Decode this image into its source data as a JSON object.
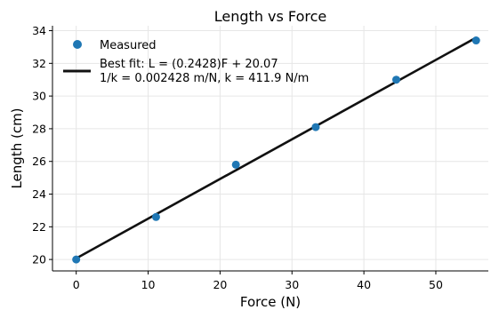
{
  "chart_data": {
    "type": "scatter",
    "title": "Length vs Force",
    "xlabel": "Force (N)",
    "ylabel": "Length (cm)",
    "xlim": [
      -3.3,
      57.3
    ],
    "ylim": [
      19.3,
      34.3
    ],
    "xticks": [
      0,
      10,
      20,
      30,
      40,
      50
    ],
    "yticks": [
      20,
      22,
      24,
      26,
      28,
      30,
      32,
      34
    ],
    "grid": true,
    "legend_position": "top-left",
    "series": [
      {
        "name": "Measured",
        "kind": "points",
        "color": "#1f77b4",
        "x": [
          0,
          11.1,
          22.2,
          33.3,
          44.5,
          55.6
        ],
        "y": [
          20.0,
          22.6,
          25.8,
          28.1,
          31.0,
          33.4
        ]
      },
      {
        "name": "Best fit: L = (0.2428)F + 20.07",
        "name_line2": "1/k = 0.002428 m/N,  k = 411.9 N/m",
        "kind": "line",
        "color": "#111111",
        "slope": 0.2428,
        "intercept": 20.07,
        "x_range": [
          0,
          55.6
        ]
      }
    ]
  }
}
